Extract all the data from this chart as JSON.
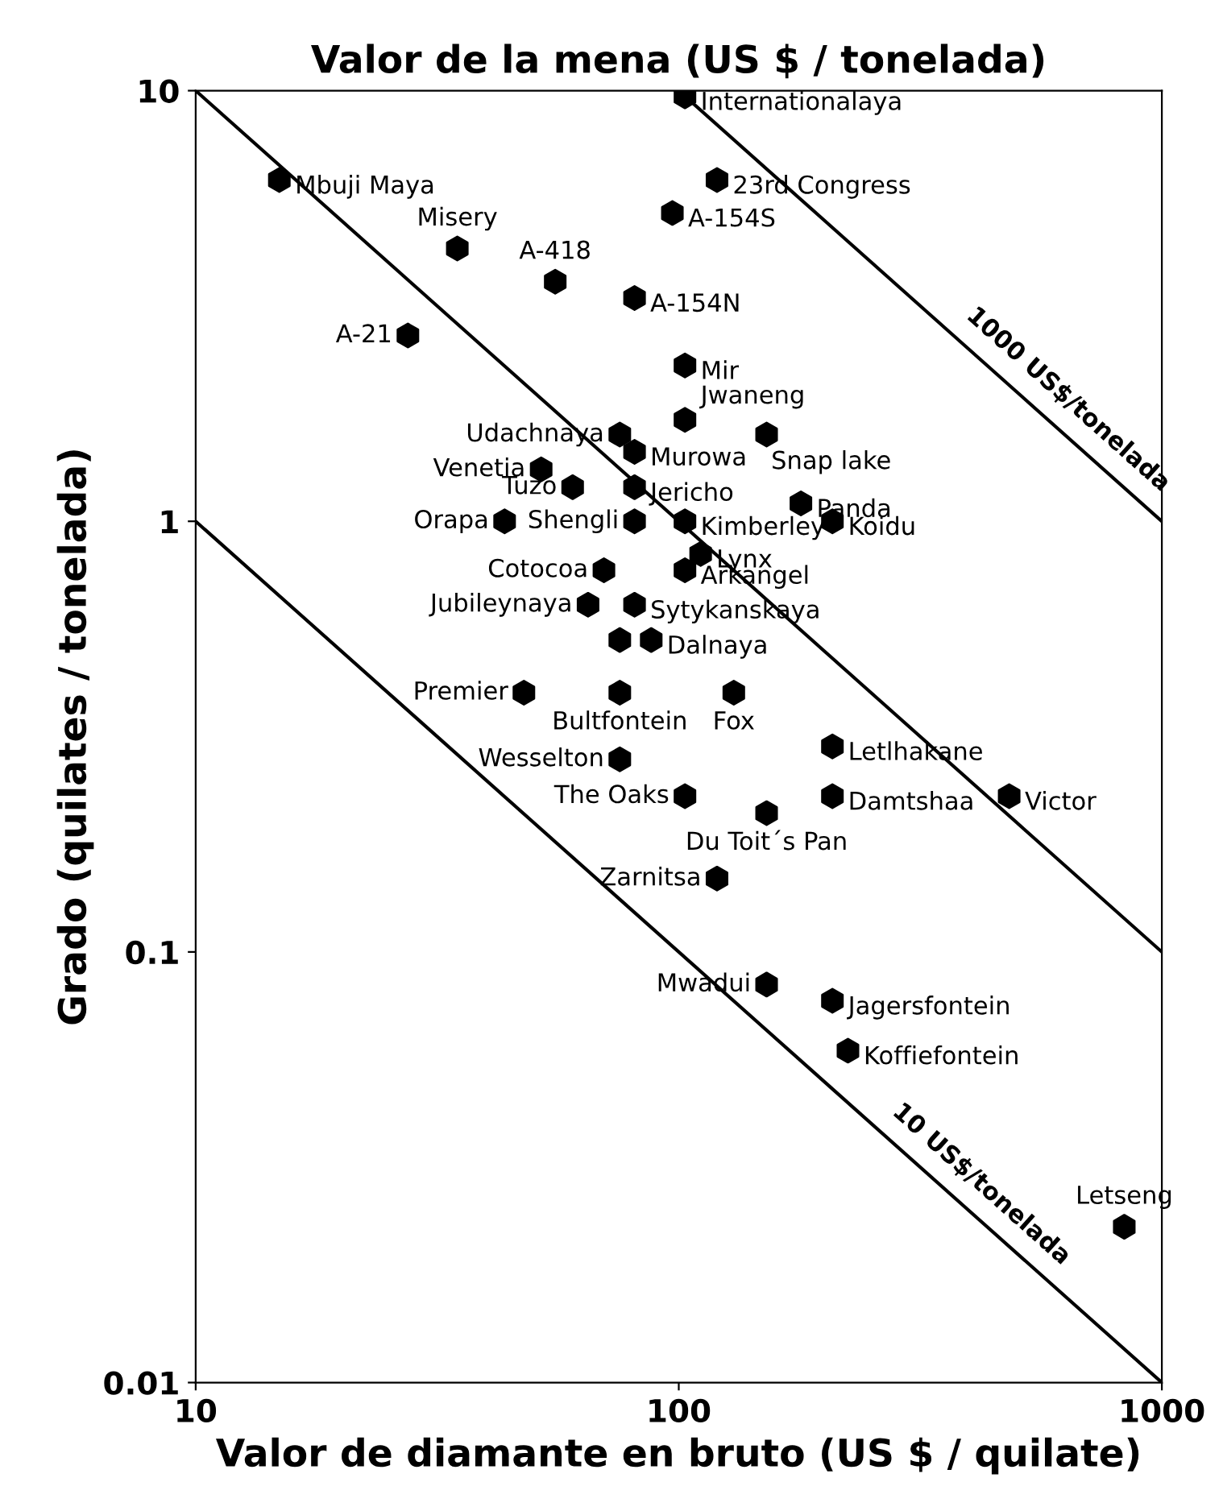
{
  "chart_data": {
    "type": "scatter",
    "title": "Valor de la mena (US $ / tonelada)",
    "xlabel": "Valor de diamante en bruto (US $ / quilate)",
    "ylabel": "Grado (quilates / tonelada)",
    "log": "xy",
    "xlim": [
      10,
      1000
    ],
    "ylim": [
      0.01,
      10
    ],
    "xticks": [
      10,
      100,
      1000
    ],
    "yticks": [
      0.01,
      0.1,
      1,
      10
    ],
    "grid": false,
    "series": [
      {
        "marker": "circle",
        "color": "#000000",
        "x": [
          103,
          120,
          97,
          14.9,
          34.8,
          55.5,
          81,
          27.5,
          103,
          103,
          152,
          75.5,
          81,
          51.9,
          60.3,
          81,
          179,
          43.6,
          81,
          103,
          208,
          111,
          70,
          103,
          64.9,
          81,
          75.5,
          87.7,
          47.8,
          75.5,
          130,
          208,
          75.5,
          103,
          208,
          483,
          152,
          120,
          152,
          208,
          224,
          836
        ],
        "values": [
          9.7,
          6.2,
          5.2,
          6.2,
          4.3,
          3.6,
          3.3,
          2.7,
          2.3,
          1.72,
          1.59,
          1.59,
          1.45,
          1.32,
          1.2,
          1.2,
          1.1,
          1.0,
          1.0,
          1.0,
          1.0,
          0.84,
          0.77,
          0.77,
          0.64,
          0.64,
          0.53,
          0.53,
          0.4,
          0.4,
          0.4,
          0.3,
          0.28,
          0.23,
          0.23,
          0.23,
          0.21,
          0.148,
          0.084,
          0.077,
          0.059,
          0.023
        ]
      },
      {
        "type": "line",
        "color": "#000000",
        "x": [
          100,
          1000
        ],
        "values": [
          10,
          1
        ]
      },
      {
        "type": "line",
        "color": "#000000",
        "x": [
          10,
          1000
        ],
        "values": [
          10,
          0.1
        ]
      },
      {
        "type": "line",
        "color": "#000000",
        "x": [
          10,
          1000
        ],
        "values": [
          1,
          0.01
        ]
      }
    ],
    "annotations": [
      {
        "text": "Internationalaya",
        "x": 103,
        "y": 9.7
      },
      {
        "text": "23rd Congress",
        "x": 120,
        "y": 6.2
      },
      {
        "text": "A-154S",
        "x": 97,
        "y": 5.2
      },
      {
        "text": "Mbuji Maya",
        "x": 14.9,
        "y": 6.2
      },
      {
        "text": "Misery",
        "x": 34.8,
        "y": 4.3
      },
      {
        "text": "A-418",
        "x": 55.5,
        "y": 3.6
      },
      {
        "text": "A-154N",
        "x": 81,
        "y": 3.3
      },
      {
        "text": "A-21",
        "x": 27.5,
        "y": 2.7
      },
      {
        "text": "Mir",
        "x": 103,
        "y": 2.3
      },
      {
        "text": "Jwaneng",
        "x": 103,
        "y": 1.72
      },
      {
        "text": "Snap lake",
        "x": 152,
        "y": 1.59
      },
      {
        "text": "Udachnaya",
        "x": 75.5,
        "y": 1.59
      },
      {
        "text": "Murowa",
        "x": 81,
        "y": 1.45
      },
      {
        "text": "Venetia",
        "x": 51.9,
        "y": 1.32
      },
      {
        "text": "Tuzo",
        "x": 60.3,
        "y": 1.2
      },
      {
        "text": "Jericho",
        "x": 81,
        "y": 1.2
      },
      {
        "text": "Panda",
        "x": 179,
        "y": 1.1
      },
      {
        "text": "Orapa",
        "x": 43.6,
        "y": 1.0
      },
      {
        "text": "Shengli",
        "x": 81,
        "y": 1.0
      },
      {
        "text": "Kimberley",
        "x": 103,
        "y": 1.0
      },
      {
        "text": "Koidu",
        "x": 208,
        "y": 1.0
      },
      {
        "text": "Lynx",
        "x": 111,
        "y": 0.84
      },
      {
        "text": "Cotocoa",
        "x": 70,
        "y": 0.77
      },
      {
        "text": "Arkangel",
        "x": 103,
        "y": 0.77
      },
      {
        "text": "Jubileynaya",
        "x": 64.9,
        "y": 0.64
      },
      {
        "text": "Sytykanskaya",
        "x": 81,
        "y": 0.64
      },
      {
        "text": "Dalnaya",
        "x": 87.7,
        "y": 0.53
      },
      {
        "text": "Premier",
        "x": 47.8,
        "y": 0.4
      },
      {
        "text": "Bultfontein",
        "x": 75.5,
        "y": 0.4
      },
      {
        "text": "Fox",
        "x": 130,
        "y": 0.4
      },
      {
        "text": "Letlhakane",
        "x": 208,
        "y": 0.3
      },
      {
        "text": "Wesselton",
        "x": 75.5,
        "y": 0.28
      },
      {
        "text": "The Oaks",
        "x": 103,
        "y": 0.23
      },
      {
        "text": "Damtshaa",
        "x": 208,
        "y": 0.23
      },
      {
        "text": "Victor",
        "x": 483,
        "y": 0.23
      },
      {
        "text": "Du Toit´s Pan",
        "x": 152,
        "y": 0.21
      },
      {
        "text": "Zarnitsa",
        "x": 120,
        "y": 0.148
      },
      {
        "text": "Mwadui",
        "x": 152,
        "y": 0.084
      },
      {
        "text": "Jagersfontein",
        "x": 208,
        "y": 0.077
      },
      {
        "text": "Koffiefontein",
        "x": 224,
        "y": 0.059
      },
      {
        "text": "Letseng",
        "x": 836,
        "y": 0.023
      },
      {
        "text": "1000 US$/tonelada",
        "x": 590,
        "y": 1.7
      },
      {
        "text": "10 US$/tonelada",
        "x": 390,
        "y": 0.0256
      }
    ]
  }
}
